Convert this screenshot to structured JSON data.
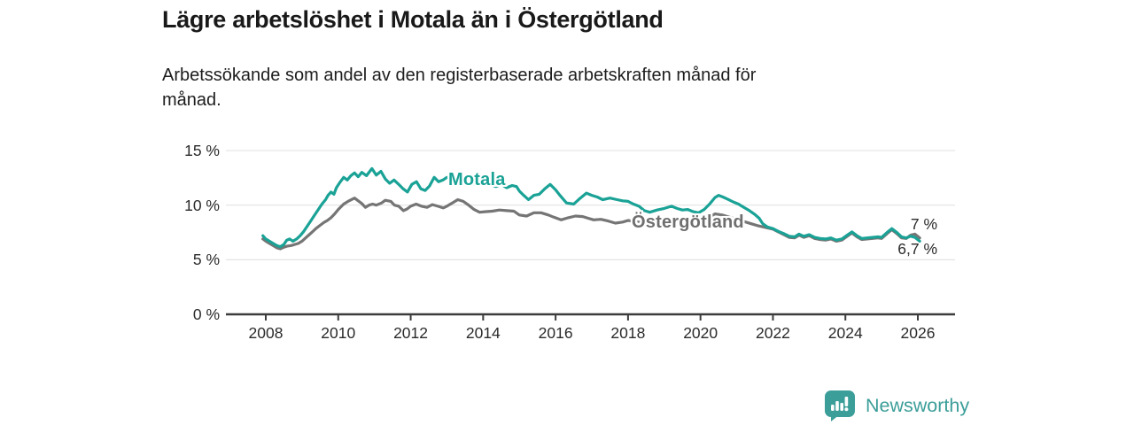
{
  "header": {
    "title": "Lägre arbetslöshet i Motala än i Östergötland",
    "subtitle": "Arbetssökande som andel av den registerbaserade arbetskraften månad för\nmånad."
  },
  "footer": {
    "brand": "Newsworthy"
  },
  "colors": {
    "motala": "#1aa296",
    "ostergotland": "#757575",
    "axis": "#3c3c3c",
    "grid": "#e3e3e3",
    "brand": "#3b9e99",
    "text": "#2b2b2b"
  },
  "chart_data": {
    "type": "line",
    "title": "Lägre arbetslöshet i Motala än i Östergötland",
    "subtitle": "Arbetssökande som andel av den registerbaserade arbetskraften månad för månad.",
    "xlabel": "",
    "ylabel": "",
    "xlim": [
      2007.8,
      2026.9
    ],
    "ylim": [
      0,
      15
    ],
    "grid": true,
    "legend_position": "inline-labels",
    "y_ticks": [
      {
        "value": 0,
        "label": "0 %"
      },
      {
        "value": 5,
        "label": "5 %"
      },
      {
        "value": 10,
        "label": "10 %"
      },
      {
        "value": 15,
        "label": "15 %"
      }
    ],
    "x_ticks": [
      {
        "value": 2008,
        "label": "2008"
      },
      {
        "value": 2010,
        "label": "2010"
      },
      {
        "value": 2012,
        "label": "2012"
      },
      {
        "value": 2014,
        "label": "2014"
      },
      {
        "value": 2016,
        "label": "2016"
      },
      {
        "value": 2018,
        "label": "2018"
      },
      {
        "value": 2020,
        "label": "2020"
      },
      {
        "value": 2022,
        "label": "2022"
      },
      {
        "value": 2024,
        "label": "2024"
      },
      {
        "value": 2026,
        "label": "2026"
      }
    ],
    "series": [
      {
        "name": "Motala",
        "color": "#1aa296",
        "end_label": "6,7 %",
        "final_value": 6.7,
        "points": [
          [
            2007.92,
            7.2
          ],
          [
            2008.0,
            6.9
          ],
          [
            2008.1,
            6.7
          ],
          [
            2008.2,
            6.5
          ],
          [
            2008.3,
            6.3
          ],
          [
            2008.4,
            6.2
          ],
          [
            2008.5,
            6.4
          ],
          [
            2008.58,
            6.8
          ],
          [
            2008.66,
            6.9
          ],
          [
            2008.75,
            6.7
          ],
          [
            2008.85,
            6.9
          ],
          [
            2008.95,
            7.2
          ],
          [
            2009.05,
            7.6
          ],
          [
            2009.15,
            8.1
          ],
          [
            2009.25,
            8.6
          ],
          [
            2009.35,
            9.1
          ],
          [
            2009.45,
            9.6
          ],
          [
            2009.55,
            10.1
          ],
          [
            2009.65,
            10.5
          ],
          [
            2009.72,
            10.9
          ],
          [
            2009.8,
            11.2
          ],
          [
            2009.88,
            11.0
          ],
          [
            2009.95,
            11.6
          ],
          [
            2010.05,
            12.1
          ],
          [
            2010.15,
            12.55
          ],
          [
            2010.25,
            12.3
          ],
          [
            2010.35,
            12.7
          ],
          [
            2010.45,
            12.95
          ],
          [
            2010.55,
            12.6
          ],
          [
            2010.65,
            13.0
          ],
          [
            2010.78,
            12.7
          ],
          [
            2010.93,
            13.35
          ],
          [
            2011.05,
            12.75
          ],
          [
            2011.18,
            13.1
          ],
          [
            2011.3,
            12.4
          ],
          [
            2011.42,
            12.0
          ],
          [
            2011.54,
            12.3
          ],
          [
            2011.67,
            11.9
          ],
          [
            2011.79,
            11.5
          ],
          [
            2011.91,
            11.2
          ],
          [
            2012.03,
            11.9
          ],
          [
            2012.16,
            12.15
          ],
          [
            2012.28,
            11.5
          ],
          [
            2012.4,
            11.35
          ],
          [
            2012.52,
            11.75
          ],
          [
            2012.65,
            12.55
          ],
          [
            2012.77,
            12.15
          ],
          [
            2012.89,
            12.3
          ],
          [
            2013.0,
            12.55
          ],
          [
            2013.15,
            12.4
          ],
          [
            2013.3,
            12.2
          ],
          [
            2013.45,
            12.45
          ],
          [
            2013.6,
            12.2
          ],
          [
            2013.75,
            11.9
          ],
          [
            2013.9,
            12.1
          ],
          [
            2014.05,
            12.2
          ],
          [
            2014.2,
            11.9
          ],
          [
            2014.35,
            11.7
          ],
          [
            2014.5,
            11.9
          ],
          [
            2014.65,
            11.6
          ],
          [
            2014.8,
            11.8
          ],
          [
            2014.92,
            11.7
          ],
          [
            2015.0,
            11.3
          ],
          [
            2015.12,
            10.9
          ],
          [
            2015.25,
            10.5
          ],
          [
            2015.4,
            10.9
          ],
          [
            2015.55,
            11.0
          ],
          [
            2015.7,
            11.5
          ],
          [
            2015.85,
            11.9
          ],
          [
            2016.0,
            11.4
          ],
          [
            2016.12,
            10.9
          ],
          [
            2016.3,
            10.2
          ],
          [
            2016.5,
            10.1
          ],
          [
            2016.65,
            10.55
          ],
          [
            2016.85,
            11.1
          ],
          [
            2017.0,
            10.9
          ],
          [
            2017.15,
            10.75
          ],
          [
            2017.3,
            10.5
          ],
          [
            2017.5,
            10.65
          ],
          [
            2017.7,
            10.5
          ],
          [
            2017.85,
            10.4
          ],
          [
            2018.0,
            10.35
          ],
          [
            2018.15,
            10.1
          ],
          [
            2018.3,
            9.9
          ],
          [
            2018.45,
            9.5
          ],
          [
            2018.6,
            9.35
          ],
          [
            2018.8,
            9.55
          ],
          [
            2019.0,
            9.7
          ],
          [
            2019.2,
            9.9
          ],
          [
            2019.35,
            9.7
          ],
          [
            2019.5,
            9.55
          ],
          [
            2019.65,
            9.6
          ],
          [
            2019.8,
            9.4
          ],
          [
            2019.95,
            9.3
          ],
          [
            2020.1,
            9.6
          ],
          [
            2020.25,
            10.1
          ],
          [
            2020.4,
            10.7
          ],
          [
            2020.5,
            10.9
          ],
          [
            2020.62,
            10.75
          ],
          [
            2020.75,
            10.55
          ],
          [
            2020.9,
            10.3
          ],
          [
            2021.05,
            10.1
          ],
          [
            2021.2,
            9.8
          ],
          [
            2021.35,
            9.5
          ],
          [
            2021.5,
            9.15
          ],
          [
            2021.62,
            8.8
          ],
          [
            2021.72,
            8.3
          ],
          [
            2021.85,
            8.0
          ],
          [
            2022.0,
            7.85
          ],
          [
            2022.15,
            7.6
          ],
          [
            2022.3,
            7.4
          ],
          [
            2022.45,
            7.15
          ],
          [
            2022.6,
            7.1
          ],
          [
            2022.72,
            7.35
          ],
          [
            2022.85,
            7.15
          ],
          [
            2023.0,
            7.3
          ],
          [
            2023.15,
            7.05
          ],
          [
            2023.3,
            6.95
          ],
          [
            2023.45,
            6.9
          ],
          [
            2023.6,
            7.0
          ],
          [
            2023.75,
            6.8
          ],
          [
            2023.9,
            6.9
          ],
          [
            2024.05,
            7.25
          ],
          [
            2024.18,
            7.55
          ],
          [
            2024.32,
            7.2
          ],
          [
            2024.45,
            6.95
          ],
          [
            2024.6,
            7.0
          ],
          [
            2024.75,
            7.05
          ],
          [
            2024.9,
            7.1
          ],
          [
            2025.0,
            7.05
          ],
          [
            2025.15,
            7.5
          ],
          [
            2025.28,
            7.85
          ],
          [
            2025.42,
            7.5
          ],
          [
            2025.55,
            7.1
          ],
          [
            2025.68,
            7.0
          ],
          [
            2025.8,
            7.15
          ],
          [
            2025.92,
            7.05
          ],
          [
            2026.05,
            6.7
          ]
        ]
      },
      {
        "name": "Östergötland",
        "color": "#757575",
        "end_label": "7 %",
        "final_value": 7.0,
        "points": [
          [
            2007.92,
            6.9
          ],
          [
            2008.0,
            6.7
          ],
          [
            2008.1,
            6.5
          ],
          [
            2008.2,
            6.3
          ],
          [
            2008.3,
            6.1
          ],
          [
            2008.4,
            6.0
          ],
          [
            2008.5,
            6.15
          ],
          [
            2008.6,
            6.25
          ],
          [
            2008.7,
            6.3
          ],
          [
            2008.8,
            6.4
          ],
          [
            2008.9,
            6.5
          ],
          [
            2009.0,
            6.7
          ],
          [
            2009.1,
            7.0
          ],
          [
            2009.2,
            7.3
          ],
          [
            2009.3,
            7.6
          ],
          [
            2009.4,
            7.9
          ],
          [
            2009.5,
            8.15
          ],
          [
            2009.6,
            8.4
          ],
          [
            2009.7,
            8.6
          ],
          [
            2009.8,
            8.85
          ],
          [
            2009.9,
            9.2
          ],
          [
            2010.0,
            9.6
          ],
          [
            2010.15,
            10.1
          ],
          [
            2010.3,
            10.4
          ],
          [
            2010.45,
            10.65
          ],
          [
            2010.55,
            10.4
          ],
          [
            2010.65,
            10.15
          ],
          [
            2010.75,
            9.8
          ],
          [
            2010.85,
            10.0
          ],
          [
            2010.95,
            10.1
          ],
          [
            2011.05,
            10.0
          ],
          [
            2011.2,
            10.2
          ],
          [
            2011.3,
            10.45
          ],
          [
            2011.45,
            10.35
          ],
          [
            2011.55,
            10.0
          ],
          [
            2011.67,
            9.9
          ],
          [
            2011.8,
            9.5
          ],
          [
            2011.9,
            9.65
          ],
          [
            2012.0,
            9.9
          ],
          [
            2012.15,
            10.1
          ],
          [
            2012.3,
            9.9
          ],
          [
            2012.45,
            9.8
          ],
          [
            2012.6,
            10.05
          ],
          [
            2012.75,
            9.9
          ],
          [
            2012.9,
            9.75
          ],
          [
            2013.0,
            9.9
          ],
          [
            2013.15,
            10.2
          ],
          [
            2013.3,
            10.5
          ],
          [
            2013.45,
            10.35
          ],
          [
            2013.6,
            10.0
          ],
          [
            2013.75,
            9.6
          ],
          [
            2013.9,
            9.35
          ],
          [
            2014.05,
            9.4
          ],
          [
            2014.25,
            9.45
          ],
          [
            2014.45,
            9.55
          ],
          [
            2014.65,
            9.5
          ],
          [
            2014.85,
            9.45
          ],
          [
            2015.0,
            9.1
          ],
          [
            2015.2,
            9.0
          ],
          [
            2015.4,
            9.3
          ],
          [
            2015.6,
            9.3
          ],
          [
            2015.8,
            9.1
          ],
          [
            2015.95,
            8.9
          ],
          [
            2016.15,
            8.65
          ],
          [
            2016.35,
            8.85
          ],
          [
            2016.55,
            9.0
          ],
          [
            2016.75,
            8.95
          ],
          [
            2016.9,
            8.8
          ],
          [
            2017.05,
            8.65
          ],
          [
            2017.25,
            8.7
          ],
          [
            2017.45,
            8.55
          ],
          [
            2017.65,
            8.35
          ],
          [
            2017.85,
            8.45
          ],
          [
            2018.0,
            8.6
          ],
          [
            2018.2,
            8.5
          ],
          [
            2018.4,
            8.4
          ],
          [
            2018.6,
            8.3
          ],
          [
            2018.8,
            8.4
          ],
          [
            2019.0,
            8.5
          ],
          [
            2019.2,
            8.6
          ],
          [
            2019.4,
            8.5
          ],
          [
            2019.6,
            8.4
          ],
          [
            2019.8,
            8.3
          ],
          [
            2020.0,
            8.5
          ],
          [
            2020.2,
            8.8
          ],
          [
            2020.4,
            9.2
          ],
          [
            2020.6,
            9.1
          ],
          [
            2020.8,
            8.9
          ],
          [
            2021.0,
            8.7
          ],
          [
            2021.2,
            8.5
          ],
          [
            2021.4,
            8.3
          ],
          [
            2021.6,
            8.1
          ],
          [
            2021.8,
            7.95
          ],
          [
            2022.0,
            7.8
          ],
          [
            2022.15,
            7.55
          ],
          [
            2022.3,
            7.3
          ],
          [
            2022.45,
            7.05
          ],
          [
            2022.6,
            7.0
          ],
          [
            2022.72,
            7.25
          ],
          [
            2022.85,
            7.05
          ],
          [
            2023.0,
            7.2
          ],
          [
            2023.15,
            6.95
          ],
          [
            2023.3,
            6.85
          ],
          [
            2023.45,
            6.8
          ],
          [
            2023.6,
            6.9
          ],
          [
            2023.75,
            6.7
          ],
          [
            2023.9,
            6.8
          ],
          [
            2024.05,
            7.15
          ],
          [
            2024.18,
            7.45
          ],
          [
            2024.32,
            7.1
          ],
          [
            2024.45,
            6.85
          ],
          [
            2024.6,
            6.9
          ],
          [
            2024.75,
            6.95
          ],
          [
            2024.9,
            7.0
          ],
          [
            2025.0,
            6.95
          ],
          [
            2025.15,
            7.4
          ],
          [
            2025.28,
            7.75
          ],
          [
            2025.42,
            7.4
          ],
          [
            2025.55,
            7.0
          ],
          [
            2025.68,
            6.95
          ],
          [
            2025.8,
            7.25
          ],
          [
            2025.92,
            7.35
          ],
          [
            2026.05,
            7.0
          ]
        ]
      }
    ]
  }
}
